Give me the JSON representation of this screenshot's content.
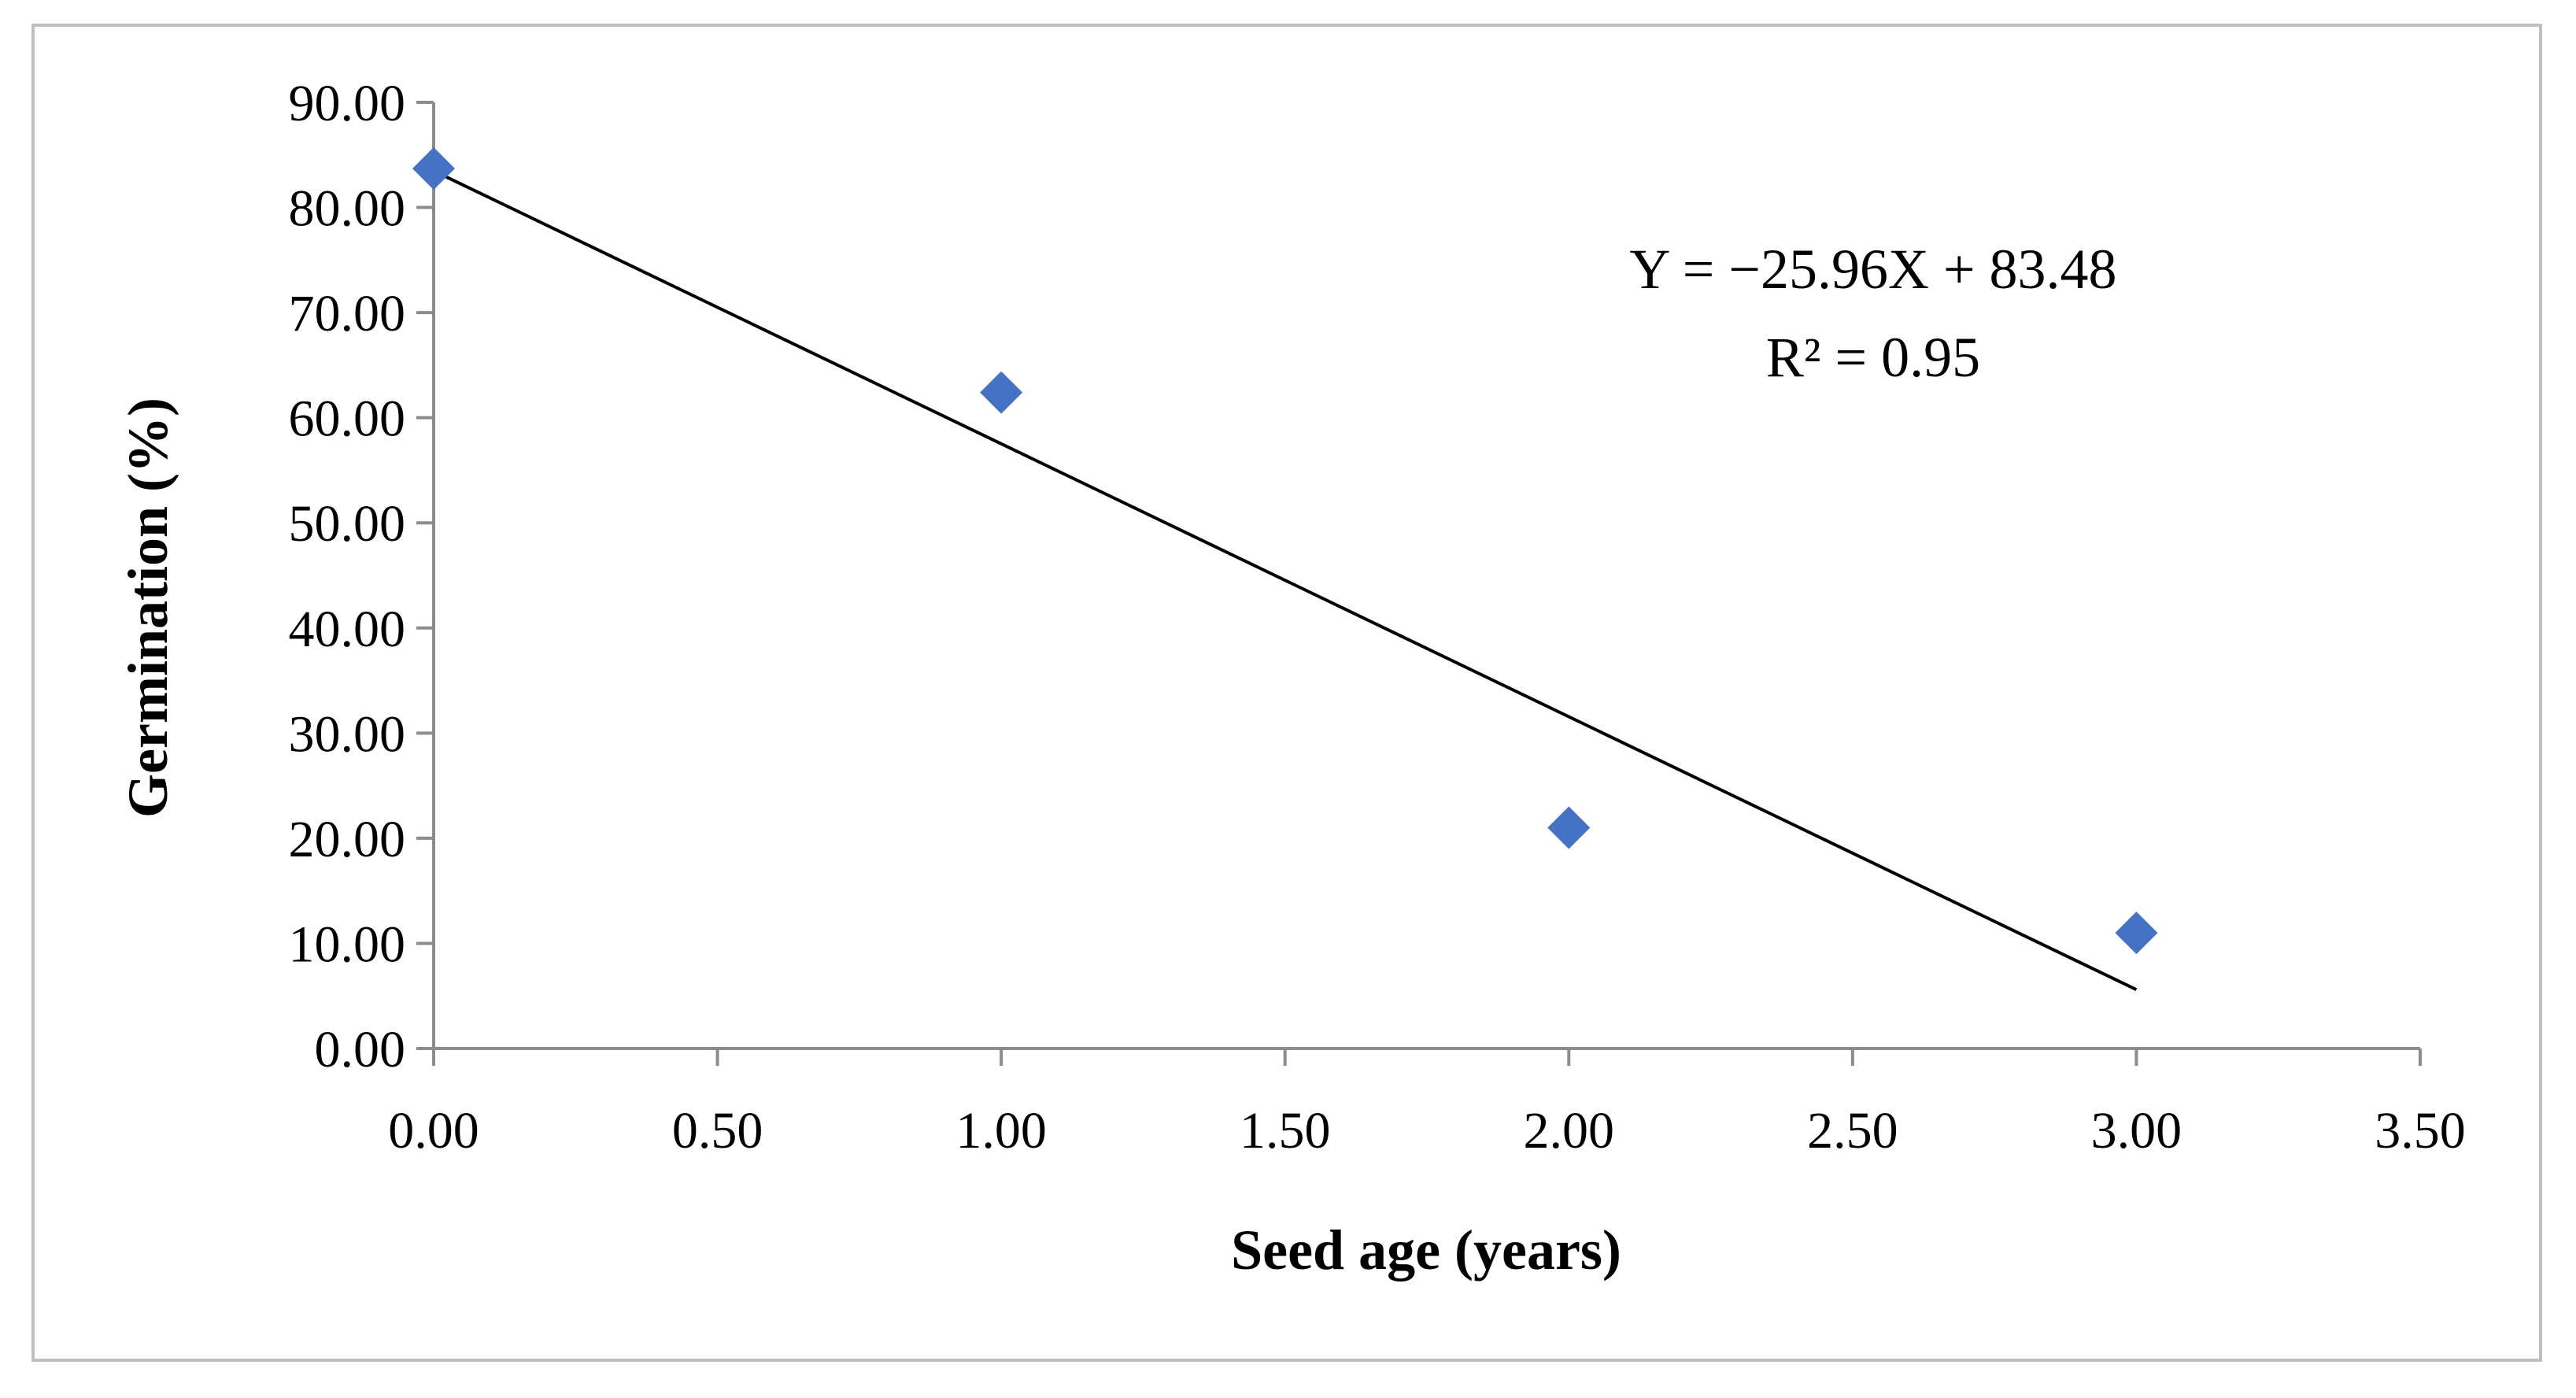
{
  "chart_data": {
    "type": "scatter",
    "title": "",
    "xlabel": "Seed age (years)",
    "ylabel": "Germination (%)",
    "xlim": [
      0,
      3.5
    ],
    "ylim": [
      0,
      90
    ],
    "x_ticks": [
      "0.00",
      "0.50",
      "1.00",
      "1.50",
      "2.00",
      "2.50",
      "3.00",
      "3.50"
    ],
    "y_ticks": [
      "0.00",
      "10.00",
      "20.00",
      "30.00",
      "40.00",
      "50.00",
      "60.00",
      "70.00",
      "80.00",
      "90.00"
    ],
    "x_tick_values": [
      0,
      0.5,
      1,
      1.5,
      2,
      2.5,
      3,
      3.5
    ],
    "y_tick_values": [
      0,
      10,
      20,
      30,
      40,
      50,
      60,
      70,
      80,
      90
    ],
    "grid": false,
    "marker": "diamond",
    "series": [
      {
        "color": "#4472c4",
        "x": [
          0,
          1,
          2,
          3
        ],
        "y": [
          83.7,
          62.4,
          21.0,
          11.0
        ]
      }
    ],
    "trendline": {
      "type": "linear",
      "slope": -25.96,
      "intercept": 83.48,
      "x_range": [
        0,
        3
      ],
      "color": "#000000"
    },
    "annotations": {
      "equation": "Y = −25.96X + 83.48",
      "r_squared": "R² = 0.95"
    },
    "colors": {
      "axis": "#8c8c8c",
      "frame": "#bfbfbf"
    }
  }
}
